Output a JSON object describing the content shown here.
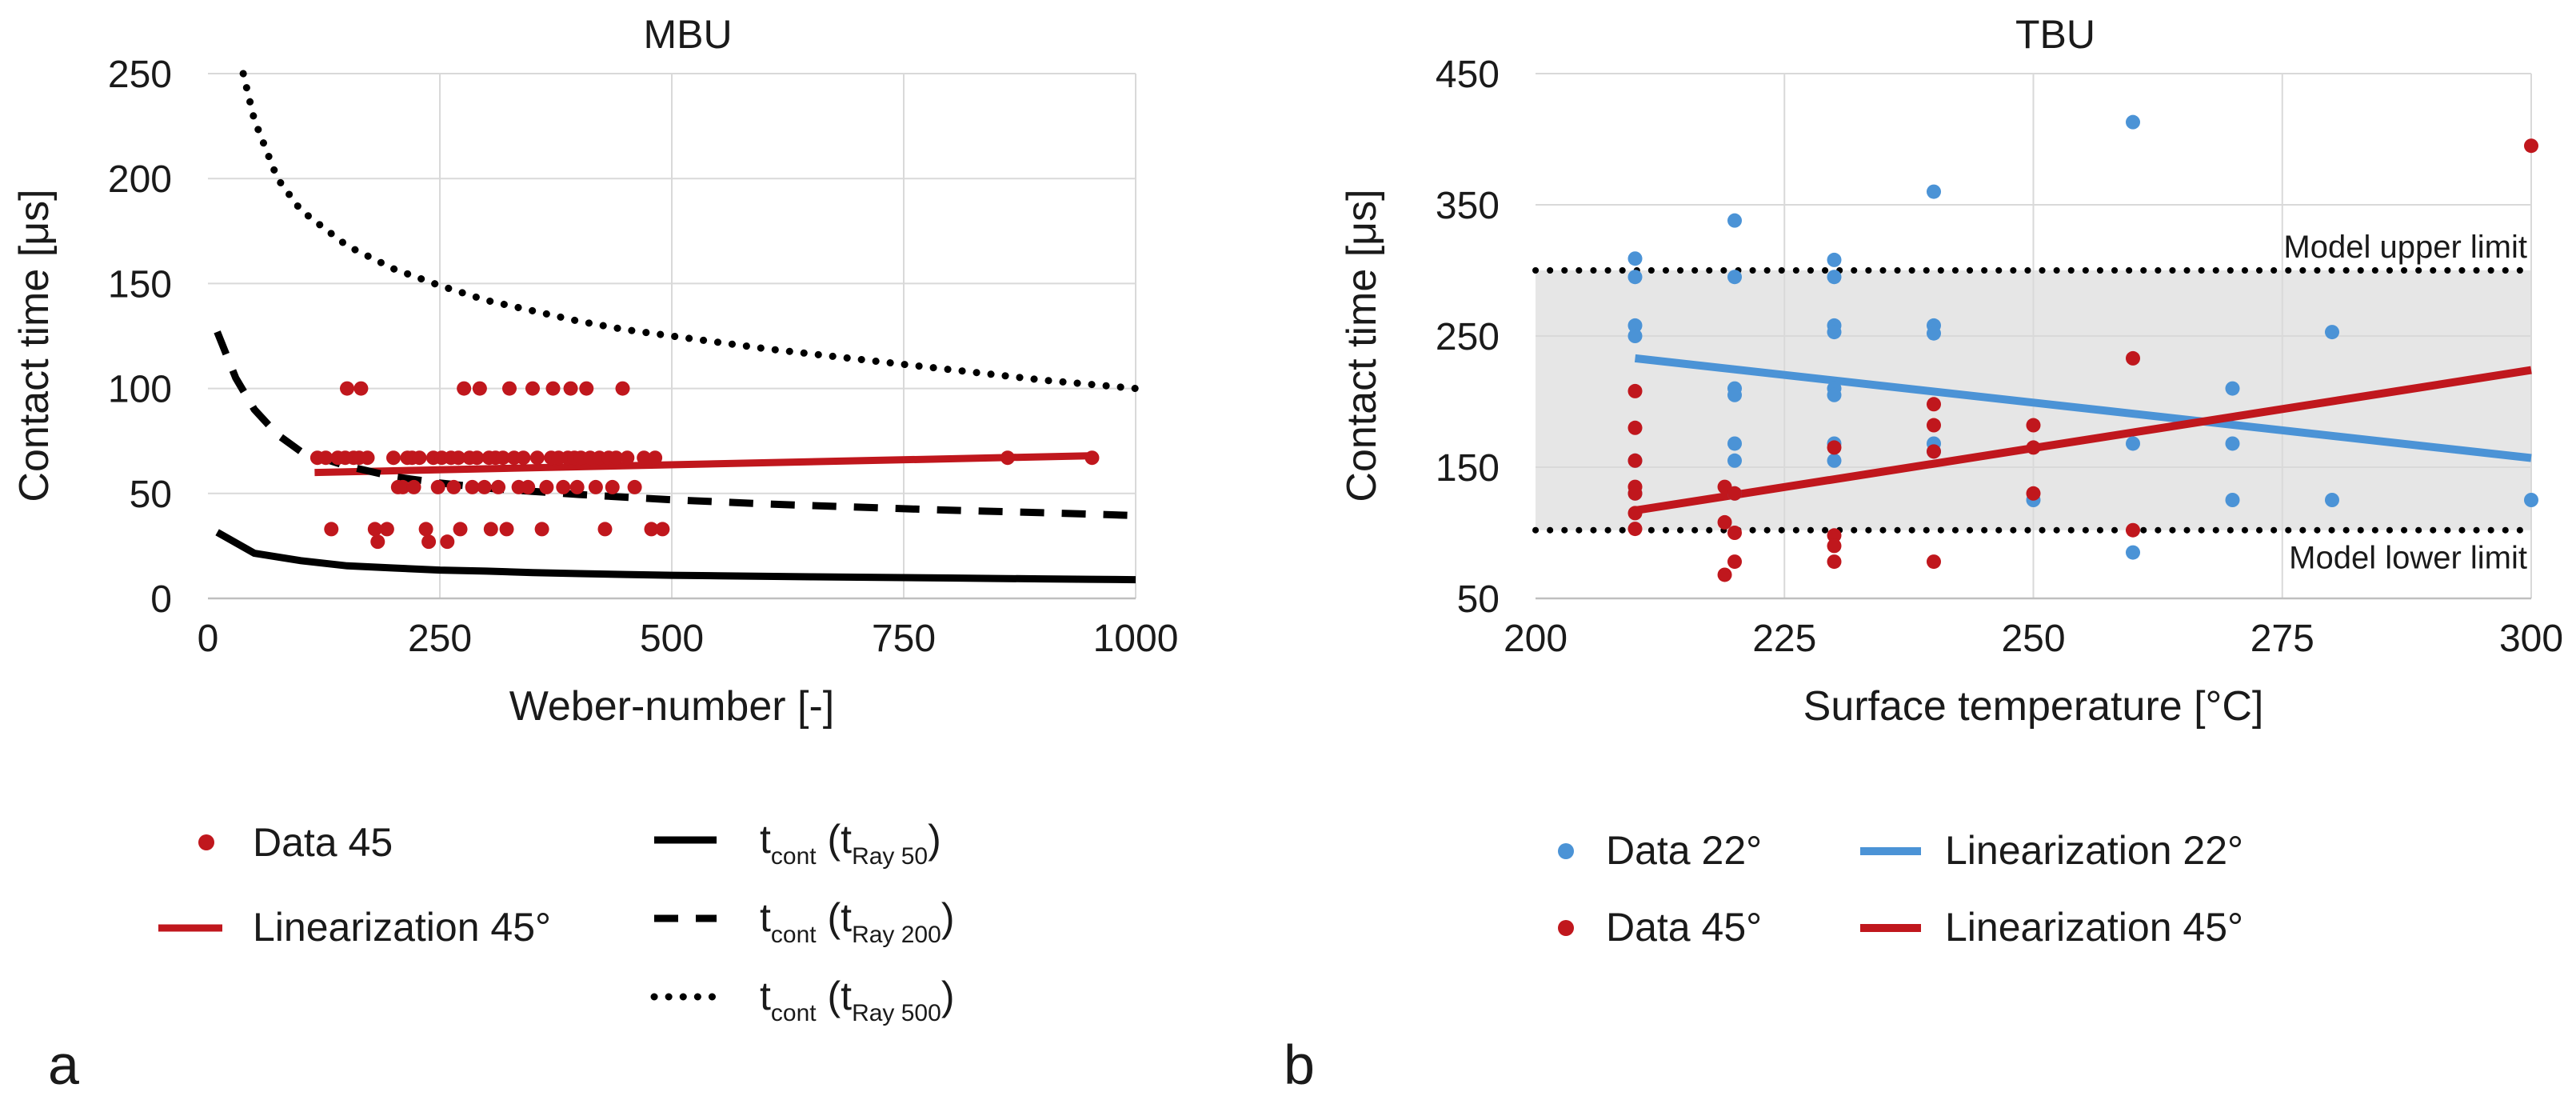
{
  "panel_labels": [
    "a",
    "b"
  ],
  "colors": {
    "red": "#c0171d",
    "blue": "#4b93d6",
    "black": "#000000",
    "grid": "#d9d9d9",
    "band": "#e6e6e6"
  },
  "chart_data": [
    {
      "type": "scatter",
      "title": "MBU",
      "xlabel": "Weber-number [-]",
      "ylabel": "Contact time [μs]",
      "xlim": [
        0,
        1000
      ],
      "ylim": [
        0,
        250
      ],
      "xticks": [
        0,
        250,
        500,
        750,
        1000
      ],
      "yticks": [
        0,
        50,
        100,
        150,
        200,
        250
      ],
      "grid": true,
      "series": [
        {
          "name": "Data 45",
          "kind": "points",
          "color": "#c0171d",
          "points": [
            [
              118,
              67
            ],
            [
              127,
              67
            ],
            [
              133,
              33
            ],
            [
              140,
              67
            ],
            [
              148,
              67
            ],
            [
              150,
              100
            ],
            [
              157,
              67
            ],
            [
              163,
              67
            ],
            [
              165,
              100
            ],
            [
              172,
              67
            ],
            [
              180,
              33
            ],
            [
              183,
              27
            ],
            [
              193,
              33
            ],
            [
              200,
              67
            ],
            [
              205,
              53
            ],
            [
              210,
              53
            ],
            [
              215,
              67
            ],
            [
              220,
              67
            ],
            [
              222,
              53
            ],
            [
              228,
              67
            ],
            [
              235,
              33
            ],
            [
              238,
              27
            ],
            [
              243,
              67
            ],
            [
              248,
              53
            ],
            [
              252,
              67
            ],
            [
              258,
              27
            ],
            [
              262,
              67
            ],
            [
              265,
              53
            ],
            [
              270,
              67
            ],
            [
              272,
              33
            ],
            [
              276,
              100
            ],
            [
              282,
              67
            ],
            [
              285,
              53
            ],
            [
              290,
              67
            ],
            [
              293,
              100
            ],
            [
              298,
              53
            ],
            [
              303,
              67
            ],
            [
              305,
              33
            ],
            [
              310,
              67
            ],
            [
              313,
              53
            ],
            [
              318,
              67
            ],
            [
              322,
              33
            ],
            [
              325,
              100
            ],
            [
              330,
              67
            ],
            [
              335,
              53
            ],
            [
              340,
              67
            ],
            [
              345,
              53
            ],
            [
              350,
              100
            ],
            [
              355,
              67
            ],
            [
              360,
              33
            ],
            [
              365,
              53
            ],
            [
              370,
              67
            ],
            [
              372,
              100
            ],
            [
              378,
              67
            ],
            [
              383,
              53
            ],
            [
              388,
              67
            ],
            [
              391,
              100
            ],
            [
              395,
              67
            ],
            [
              398,
              53
            ],
            [
              402,
              67
            ],
            [
              408,
              100
            ],
            [
              412,
              67
            ],
            [
              418,
              53
            ],
            [
              422,
              67
            ],
            [
              428,
              33
            ],
            [
              432,
              67
            ],
            [
              436,
              53
            ],
            [
              440,
              67
            ],
            [
              447,
              100
            ],
            [
              452,
              67
            ],
            [
              460,
              53
            ],
            [
              470,
              67
            ],
            [
              478,
              33
            ],
            [
              482,
              67
            ],
            [
              490,
              33
            ],
            [
              862,
              67
            ],
            [
              953,
              67
            ]
          ]
        },
        {
          "name": "Linearization 45°",
          "kind": "line",
          "style": "solid",
          "color": "#c0171d",
          "points": [
            [
              115,
              60
            ],
            [
              955,
              68
            ]
          ]
        },
        {
          "name": "t_cont (t_Ray 50)",
          "label_main": "t",
          "label_sub1": "cont",
          "label_mid": " (t",
          "label_sub2": "Ray 50",
          "label_end": ")",
          "kind": "line",
          "style": "solid",
          "color": "#000000",
          "points": [
            [
              10,
              31.5
            ],
            [
              50,
              21.5
            ],
            [
              100,
              18
            ],
            [
              150,
              15.5
            ],
            [
              200,
              14.5
            ],
            [
              250,
              13.5
            ],
            [
              300,
              13
            ],
            [
              350,
              12.3
            ],
            [
              400,
              11.8
            ],
            [
              450,
              11.4
            ],
            [
              500,
              11
            ],
            [
              550,
              10.8
            ],
            [
              600,
              10.5
            ],
            [
              650,
              10.3
            ],
            [
              700,
              10.1
            ],
            [
              750,
              9.9
            ],
            [
              800,
              9.7
            ],
            [
              850,
              9.5
            ],
            [
              900,
              9.3
            ],
            [
              950,
              9.1
            ],
            [
              1000,
              8.9
            ]
          ]
        },
        {
          "name": "t_cont (t_Ray 200)",
          "label_main": "t",
          "label_sub1": "cont",
          "label_mid": " (t",
          "label_sub2": "Ray 200",
          "label_end": ")",
          "kind": "line",
          "style": "dashed",
          "color": "#000000",
          "points": [
            [
              10,
              127
            ],
            [
              30,
              105
            ],
            [
              50,
              90
            ],
            [
              75,
              78
            ],
            [
              100,
              70
            ],
            [
              150,
              63
            ],
            [
              200,
              58
            ],
            [
              250,
              55
            ],
            [
              300,
              52.5
            ],
            [
              350,
              51
            ],
            [
              400,
              49.5
            ],
            [
              450,
              48.2
            ],
            [
              500,
              47
            ],
            [
              600,
              45
            ],
            [
              700,
              43.5
            ],
            [
              800,
              42
            ],
            [
              900,
              40.8
            ],
            [
              1000,
              39.5
            ]
          ]
        },
        {
          "name": "t_cont (t_Ray 500)",
          "label_main": "t",
          "label_sub1": "cont",
          "label_mid": " (t",
          "label_sub2": "Ray 500",
          "label_end": ")",
          "kind": "line",
          "style": "dotted",
          "color": "#000000",
          "points": [
            [
              38,
              250
            ],
            [
              50,
              228
            ],
            [
              75,
              200
            ],
            [
              100,
              185
            ],
            [
              150,
              168
            ],
            [
              200,
              157
            ],
            [
              250,
              149
            ],
            [
              300,
              142
            ],
            [
              350,
              137
            ],
            [
              400,
              132
            ],
            [
              450,
              128
            ],
            [
              500,
              125
            ],
            [
              600,
              119
            ],
            [
              700,
              114
            ],
            [
              800,
              109
            ],
            [
              900,
              104
            ],
            [
              1000,
              100
            ]
          ]
        }
      ]
    },
    {
      "type": "scatter",
      "title": "TBU",
      "xlabel": "Surface temperature [°C]",
      "ylabel": "Contact time [μs]",
      "xlim": [
        200,
        300
      ],
      "ylim": [
        50,
        450
      ],
      "xticks": [
        200,
        225,
        250,
        275,
        300
      ],
      "yticks": [
        50,
        150,
        250,
        350,
        450
      ],
      "grid": true,
      "band": {
        "from": 102,
        "to": 300
      },
      "reference_lines": [
        {
          "label": "Model upper limit",
          "y": 300
        },
        {
          "label": "Model lower limit",
          "y": 102
        }
      ],
      "series": [
        {
          "name": "Data 22°",
          "kind": "points",
          "color": "#4b93d6",
          "points": [
            [
              210,
              309
            ],
            [
              210,
              295
            ],
            [
              210,
              258
            ],
            [
              210,
              250
            ],
            [
              210,
              155
            ],
            [
              210,
              130
            ],
            [
              220,
              338
            ],
            [
              220,
              295
            ],
            [
              220,
              210
            ],
            [
              220,
              205
            ],
            [
              220,
              168
            ],
            [
              220,
              155
            ],
            [
              220,
              130
            ],
            [
              230,
              308
            ],
            [
              230,
              295
            ],
            [
              230,
              258
            ],
            [
              230,
              253
            ],
            [
              230,
              210
            ],
            [
              230,
              205
            ],
            [
              230,
              168
            ],
            [
              230,
              155
            ],
            [
              240,
              360
            ],
            [
              240,
              258
            ],
            [
              240,
              252
            ],
            [
              240,
              168
            ],
            [
              240,
              162
            ],
            [
              250,
              125
            ],
            [
              260,
              413
            ],
            [
              260,
              168
            ],
            [
              260,
              85
            ],
            [
              270,
              210
            ],
            [
              270,
              168
            ],
            [
              270,
              125
            ],
            [
              280,
              253
            ],
            [
              280,
              125
            ],
            [
              300,
              125
            ]
          ]
        },
        {
          "name": "Data 45°",
          "kind": "points",
          "color": "#c0171d",
          "points": [
            [
              210,
              208
            ],
            [
              210,
              180
            ],
            [
              210,
              155
            ],
            [
              210,
              135
            ],
            [
              210,
              130
            ],
            [
              210,
              115
            ],
            [
              210,
              103
            ],
            [
              219,
              135
            ],
            [
              219,
              108
            ],
            [
              219,
              68
            ],
            [
              220,
              130
            ],
            [
              220,
              100
            ],
            [
              220,
              78
            ],
            [
              230,
              165
            ],
            [
              230,
              98
            ],
            [
              230,
              90
            ],
            [
              230,
              78
            ],
            [
              240,
              198
            ],
            [
              240,
              182
            ],
            [
              240,
              162
            ],
            [
              240,
              78
            ],
            [
              250,
              182
            ],
            [
              250,
              165
            ],
            [
              250,
              130
            ],
            [
              260,
              233
            ],
            [
              260,
              102
            ],
            [
              300,
              395
            ]
          ]
        },
        {
          "name": "Linearization 22°",
          "kind": "line",
          "style": "solid",
          "color": "#4b93d6",
          "points": [
            [
              210,
              233
            ],
            [
              300,
              157
            ]
          ]
        },
        {
          "name": "Linearization 45°",
          "kind": "line",
          "style": "solid",
          "color": "#c0171d",
          "points": [
            [
              210,
              117
            ],
            [
              300,
              224
            ]
          ]
        }
      ]
    }
  ]
}
